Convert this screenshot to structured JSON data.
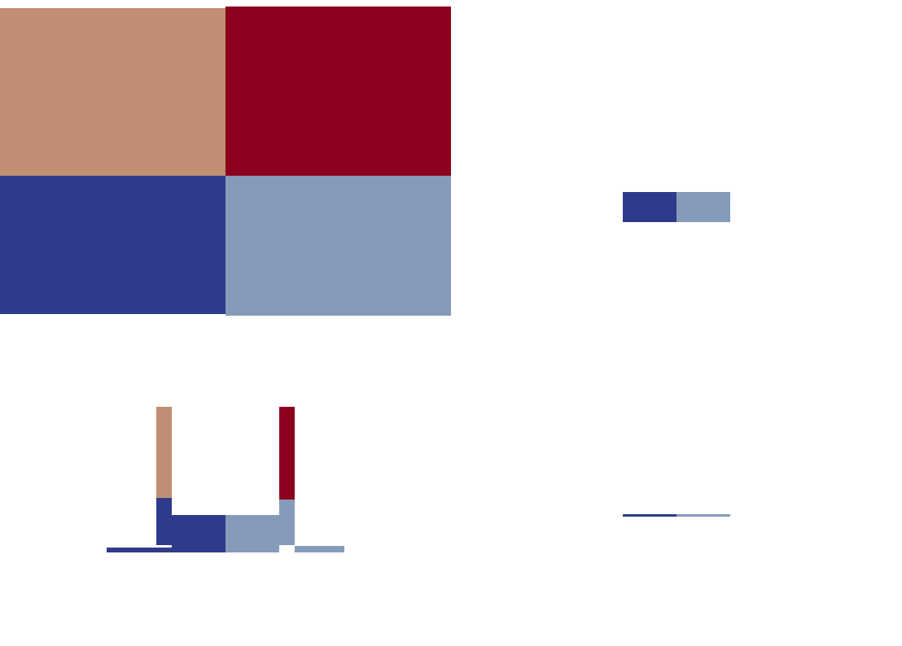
{
  "palette": {
    "tan": "#c08e72",
    "crimson": "#8c021e",
    "navy": "#2e3b8c",
    "slate_blue": "#869bba"
  },
  "regions": {
    "top_left": "tan",
    "top_right": "crimson",
    "bottom_left": "navy",
    "bottom_right": "slate_blue"
  }
}
